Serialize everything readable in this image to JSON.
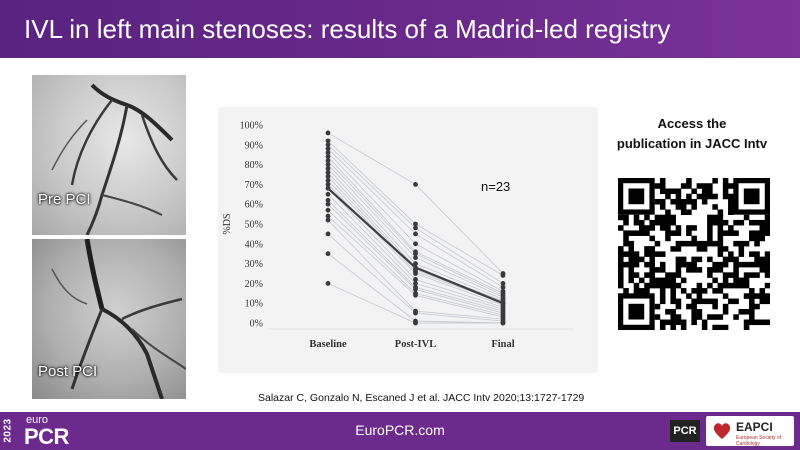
{
  "slide": {
    "title": "IVL in left main stenoses: results of a Madrid-led registry",
    "footer_site": "EuroPCR.com",
    "logo_year": "2023",
    "logo_euro": "euro",
    "logo_pcr": "PCR",
    "badge_pcr": "PCR",
    "badge_eapci": "EAPCI",
    "badge_eapci_sub": "European Society of Cardiology",
    "qr_title_line1": "Access the",
    "qr_title_line2": "publication in JACC Intv",
    "citation": "Salazar C, Gonzalo N, Escaned J et al. JACC Intv  2020;13:1727-1729",
    "images": [
      {
        "label": "Pre PCI"
      },
      {
        "label": "Post PCI"
      }
    ]
  },
  "chart_data": {
    "type": "line",
    "annotation": "n=23",
    "ylabel": "%DS",
    "xlabel": "",
    "categories": [
      "Baseline",
      "Post-IVL",
      "Final"
    ],
    "ylim": [
      0,
      100
    ],
    "yticks": [
      "0%",
      "10%",
      "20%",
      "30%",
      "40%",
      "50%",
      "60%",
      "70%",
      "80%",
      "90%",
      "100%"
    ],
    "mean": [
      68,
      28,
      10
    ],
    "patients": [
      [
        96,
        70,
        25
      ],
      [
        92,
        50,
        24
      ],
      [
        90,
        48,
        20
      ],
      [
        88,
        45,
        18
      ],
      [
        86,
        40,
        16
      ],
      [
        84,
        36,
        15
      ],
      [
        82,
        35,
        14
      ],
      [
        80,
        33,
        13
      ],
      [
        78,
        30,
        12
      ],
      [
        76,
        28,
        11
      ],
      [
        74,
        27,
        10
      ],
      [
        72,
        26,
        10
      ],
      [
        70,
        25,
        9
      ],
      [
        68,
        22,
        8
      ],
      [
        65,
        20,
        7
      ],
      [
        62,
        18,
        6
      ],
      [
        60,
        17,
        5
      ],
      [
        57,
        15,
        4
      ],
      [
        54,
        14,
        3
      ],
      [
        52,
        6,
        2
      ],
      [
        45,
        5,
        1
      ],
      [
        35,
        1,
        0
      ],
      [
        20,
        0,
        0
      ]
    ],
    "colors": {
      "mean": "#404040",
      "patient_line": "#c8ccd4",
      "point": "#3a3a3a"
    }
  }
}
